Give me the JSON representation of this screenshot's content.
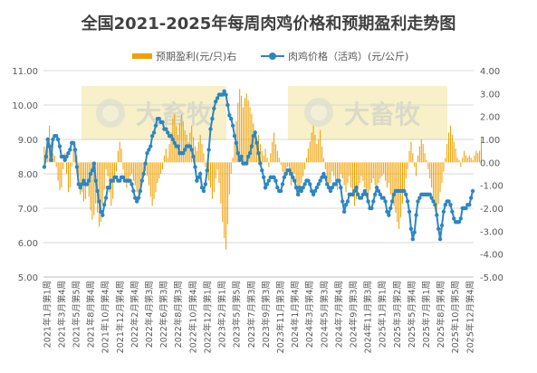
{
  "chart_data": {
    "type": "bar+line",
    "title": "全国2021-2025年每周肉鸡价格和预期盈利走势图",
    "legend": "top",
    "grid": true,
    "watermark": "大畜牧 www.dxumu.com",
    "y_left": {
      "min": 5.0,
      "max": 11.0,
      "ticks": [
        "5.00",
        "6.00",
        "7.00",
        "8.00",
        "9.00",
        "10.00",
        "11.00"
      ]
    },
    "y_right": {
      "min": -5.0,
      "max": 4.0,
      "ticks": [
        "-5.00",
        "-4.00",
        "-3.00",
        "-2.00",
        "-1.00",
        "0.00",
        "1.00",
        "2.00",
        "3.00",
        "4.00"
      ]
    },
    "x_tick_labels": [
      "2021年1月第1周",
      "2021年3月第4周",
      "2021年5月第5周",
      "2021年8月第4周",
      "2021年10月第4周",
      "2021年12月第4周",
      "2022年2月第4周",
      "2022年4月第3周",
      "2022年6月第3周",
      "2022年8月第3周",
      "2022年10月第4周",
      "2022年12月第1周",
      "2023年2月第1周",
      "2023年5月第5周",
      "2023年7月第3周",
      "2023年9月第3周",
      "2023年11月第3周",
      "2024年1月第4周",
      "2024年3月第4周",
      "2024年5月第3周",
      "2024年7月第4周",
      "2024年9月第3周",
      "2024年11月第3周",
      "2025年1月第1周",
      "2025年3月第2周",
      "2025年5月第4周",
      "2025年7月第1周",
      "2025年8月第4周",
      "2025年10月第5周",
      "2025年12月第4周"
    ],
    "series": [
      {
        "name": "预期盈利(元/只)右",
        "type": "bar",
        "axis": "right",
        "color": "#f0a000",
        "values": [
          0.7,
          0.5,
          1.1,
          1.6,
          0.9,
          0.4,
          0.3,
          -0.2,
          -0.8,
          -1.2,
          -1.1,
          -0.3,
          0.4,
          -0.5,
          -1.3,
          -1.1,
          -0.2,
          0.6,
          0.8,
          0.3,
          -0.6,
          -1.4,
          -1.3,
          -1.7,
          -1.6,
          -0.9,
          -1.5,
          -2.1,
          -2.5,
          -2.3,
          -1.8,
          -2.2,
          -2.8,
          -2.6,
          -1.8,
          -1.2,
          -0.3,
          -0.6,
          -1.3,
          -1.9,
          -1.6,
          -0.9,
          -0.4,
          0.5,
          0.9,
          0.6,
          -0.3,
          -0.8,
          -1.1,
          -0.9,
          -0.6,
          -0.5,
          -0.8,
          -1.0,
          -1.3,
          -1.7,
          -1.4,
          -0.9,
          -0.5,
          -0.4,
          -0.6,
          -1.0,
          -1.5,
          -1.9,
          -1.6,
          -1.3,
          -0.9,
          -0.7,
          -0.5,
          -0.3,
          0.3,
          0.6,
          0.2,
          0.8,
          1.3,
          1.9,
          2.1,
          1.6,
          1.2,
          1.7,
          2.1,
          1.8,
          1.4,
          1.2,
          0.9,
          1.3,
          1.6,
          1.1,
          0.7,
          0.5,
          0.9,
          1.2,
          0.8,
          0.4,
          -0.2,
          -0.6,
          -0.8,
          -1.1,
          -1.6,
          -1.3,
          -0.7,
          -0.3,
          -0.9,
          -1.8,
          -2.6,
          -3.3,
          -3.8,
          -2.7,
          -1.4,
          -0.5,
          0.2,
          0.9,
          1.8,
          2.6,
          3.2,
          2.9,
          2.4,
          2.8,
          3.0,
          2.7,
          2.4,
          2.1,
          1.7,
          1.4,
          1.0,
          1.2,
          0.8,
          0.5,
          0.3,
          0.6,
          0.2,
          -0.2,
          0.4,
          0.9,
          1.3,
          0.8,
          0.5,
          0.2,
          -0.1,
          -0.4,
          -0.7,
          -0.4,
          -0.2,
          -0.6,
          -1.0,
          -0.8,
          -0.5,
          -0.9,
          -1.2,
          -1.5,
          -0.9,
          -0.6,
          -0.3,
          0.2,
          0.6,
          0.9,
          1.3,
          1.6,
          1.2,
          0.8,
          1.0,
          1.4,
          0.7,
          0.2,
          -0.3,
          -0.8,
          -1.1,
          -0.9,
          -0.4,
          -0.6,
          -1.0,
          -1.2,
          -0.8,
          -0.5,
          -0.7,
          -1.0,
          -1.3,
          -0.9,
          -0.6,
          -1.1,
          -1.5,
          -1.9,
          -1.6,
          -1.2,
          -0.9,
          -0.6,
          -0.8,
          -1.1,
          -1.4,
          -1.6,
          -1.2,
          -0.9,
          -0.7,
          -1.0,
          -1.3,
          -0.9,
          -0.7,
          -0.6,
          -0.5,
          -0.8,
          -1.1,
          -0.9,
          -1.4,
          -1.7,
          -1.9,
          -2.2,
          -2.6,
          -2.9,
          -2.4,
          -1.8,
          -1.2,
          -0.7,
          -0.3,
          0.5,
          0.9,
          0.4,
          -0.2,
          -0.6,
          0.3,
          0.7,
          1.0,
          0.8,
          0.4,
          0.1,
          -0.3,
          -0.7,
          -1.1,
          -1.5,
          -1.9,
          -2.2,
          -1.8,
          -1.3,
          -0.9,
          -0.4,
          0.2,
          0.8,
          1.3,
          1.6,
          1.2,
          0.9,
          0.6,
          0.2,
          0.1,
          -0.2,
          0.2,
          0.5,
          0.3,
          0.2,
          0.3,
          0.2,
          0.1,
          0.3,
          0.5,
          0.4,
          0.5,
          1.1
        ]
      },
      {
        "name": "肉鸡价格（活鸡）(元/公斤)",
        "type": "line",
        "axis": "left",
        "color": "#2e86c1",
        "values": [
          8.2,
          8.5,
          9.0,
          8.8,
          8.4,
          9.0,
          9.1,
          9.1,
          9.0,
          8.8,
          8.5,
          8.5,
          8.4,
          8.5,
          8.6,
          8.7,
          8.9,
          8.9,
          8.7,
          8.2,
          7.7,
          7.6,
          7.7,
          7.8,
          7.7,
          7.7,
          7.8,
          8.0,
          8.1,
          8.3,
          7.8,
          7.5,
          7.2,
          6.9,
          6.8,
          7.1,
          7.3,
          7.6,
          7.6,
          7.8,
          7.8,
          7.9,
          7.9,
          7.8,
          7.8,
          7.9,
          7.9,
          7.8,
          7.8,
          7.8,
          7.8,
          7.7,
          7.5,
          7.3,
          7.2,
          7.3,
          7.5,
          7.8,
          8.0,
          8.3,
          8.6,
          8.7,
          8.8,
          9.1,
          9.2,
          9.4,
          9.6,
          9.6,
          9.5,
          9.5,
          9.3,
          9.3,
          9.2,
          9.1,
          9.1,
          9.0,
          8.9,
          8.8,
          8.8,
          8.6,
          8.6,
          8.6,
          8.7,
          8.8,
          8.8,
          8.8,
          8.7,
          8.5,
          8.2,
          7.8,
          7.9,
          8.0,
          7.6,
          7.5,
          7.7,
          8.1,
          8.7,
          9.3,
          9.6,
          9.9,
          10.1,
          10.2,
          10.3,
          10.3,
          10.3,
          10.4,
          10.3,
          10.0,
          9.7,
          9.6,
          9.4,
          9.1,
          8.9,
          8.6,
          8.4,
          8.5,
          8.3,
          8.3,
          8.3,
          8.5,
          8.6,
          8.8,
          9.1,
          9.2,
          8.9,
          8.6,
          8.3,
          8.1,
          7.9,
          7.6,
          7.7,
          7.8,
          7.9,
          7.9,
          7.9,
          7.8,
          7.6,
          7.5,
          7.5,
          7.7,
          7.9,
          8.0,
          8.1,
          8.1,
          8.0,
          7.9,
          7.8,
          7.6,
          7.4,
          7.6,
          7.5,
          7.6,
          7.7,
          7.8,
          7.8,
          7.7,
          7.5,
          7.4,
          7.5,
          7.6,
          7.7,
          7.8,
          7.9,
          8.0,
          7.9,
          7.7,
          7.6,
          7.5,
          7.6,
          7.7,
          7.7,
          7.8,
          7.8,
          7.6,
          7.2,
          6.9,
          7.1,
          7.2,
          7.4,
          7.4,
          7.4,
          7.5,
          7.6,
          7.4,
          7.3,
          7.3,
          7.4,
          7.5,
          7.4,
          7.2,
          7.0,
          7.0,
          7.2,
          7.4,
          7.6,
          7.5,
          7.4,
          7.3,
          7.3,
          7.2,
          6.9,
          6.8,
          7.0,
          7.2,
          7.4,
          7.5,
          7.5,
          7.5,
          7.5,
          7.5,
          7.5,
          7.4,
          7.2,
          6.9,
          6.4,
          6.1,
          6.3,
          6.8,
          7.2,
          7.3,
          7.4,
          7.4,
          7.4,
          7.4,
          7.4,
          7.4,
          7.3,
          7.2,
          7.1,
          6.8,
          6.4,
          6.1,
          6.5,
          6.9,
          7.1,
          7.2,
          7.2,
          7.1,
          6.9,
          6.7,
          6.6,
          6.6,
          6.6,
          6.7,
          7.0,
          7.0,
          7.0,
          7.1,
          7.1,
          7.3,
          7.5
        ]
      }
    ]
  }
}
